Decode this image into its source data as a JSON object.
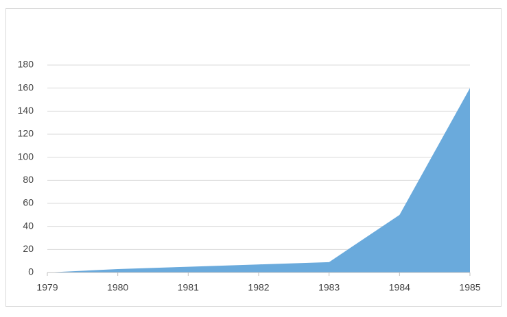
{
  "chart_data": {
    "type": "area",
    "x": [
      1979,
      1980,
      1981,
      1982,
      1983,
      1984,
      1985
    ],
    "values": [
      0,
      3,
      5,
      7,
      9,
      50,
      160
    ],
    "color": "#6aaadc",
    "xlim": [
      1979,
      1985
    ],
    "xticks": [
      1979,
      1980,
      1981,
      1982,
      1983,
      1984,
      1985
    ],
    "ylim": [
      0,
      180
    ],
    "yticks": [
      0,
      20,
      40,
      60,
      80,
      100,
      120,
      140,
      160,
      180
    ],
    "grid": true
  }
}
